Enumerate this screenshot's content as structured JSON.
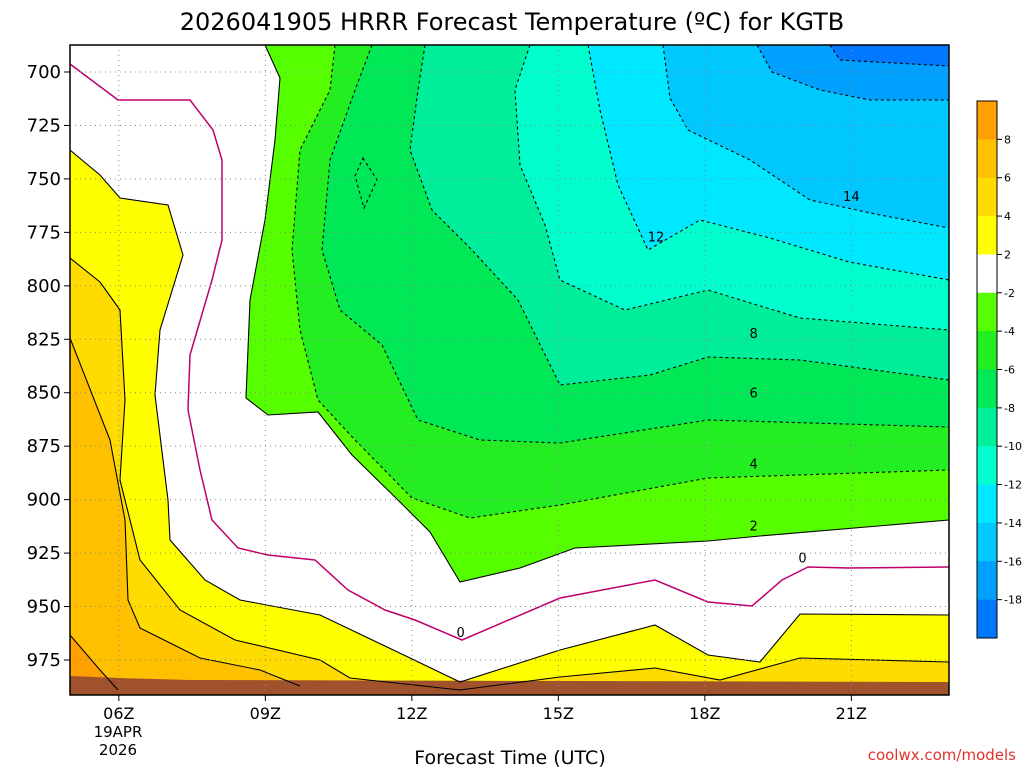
{
  "chart_data": {
    "type": "heatmap",
    "title": "2026041905 HRRR Forecast Temperature (ºC) for KGTB",
    "xlabel": "Forecast Time (UTC)",
    "ylabel": "",
    "x_ticks": [
      "06Z",
      "09Z",
      "12Z",
      "15Z",
      "18Z",
      "21Z"
    ],
    "x_date_line1": "19APR",
    "x_date_line2": "2026",
    "y_ticks": [
      700,
      725,
      750,
      775,
      800,
      825,
      850,
      875,
      900,
      925,
      950,
      975
    ],
    "y_axis": "pressure (hPa), inverted",
    "xlim": [
      "05Z",
      "23Z"
    ],
    "ylim": [
      990,
      688
    ],
    "colorbar": {
      "levels": [
        8,
        6,
        4,
        2,
        -2,
        -4,
        -6,
        -8,
        -10,
        -12,
        -14,
        -16,
        -18
      ],
      "colors": [
        "#ffa000",
        "#ffc000",
        "#ffdc00",
        "#ffff00",
        "#ffffff",
        "#55ff00",
        "#22ee22",
        "#00e855",
        "#00ee99",
        "#00ffcc",
        "#00e8ff",
        "#00c8ff",
        "#00a0ff",
        "#0078ff"
      ]
    },
    "contour_labels": [
      {
        "value": "0",
        "at": [
          "13Z",
          962
        ]
      },
      {
        "value": "0",
        "at": [
          "20Z",
          927
        ]
      },
      {
        "value": "2",
        "at": [
          "19Z",
          912
        ]
      },
      {
        "value": "4",
        "at": [
          "19Z",
          883
        ]
      },
      {
        "value": "6",
        "at": [
          "19Z",
          850
        ]
      },
      {
        "value": "8",
        "at": [
          "19Z",
          822
        ]
      },
      {
        "value": "12",
        "at": [
          "17Z",
          777
        ]
      },
      {
        "value": "14",
        "at": [
          "21Z",
          758
        ]
      }
    ],
    "notes": "Freezing level near 975-925 hPa at 09Z-23Z; coldest air (< -14 ºC) aloft near 700 hPa after 19Z; ground surface shown as brown band near 985 hPa."
  },
  "credit": "coolwx.com/models"
}
